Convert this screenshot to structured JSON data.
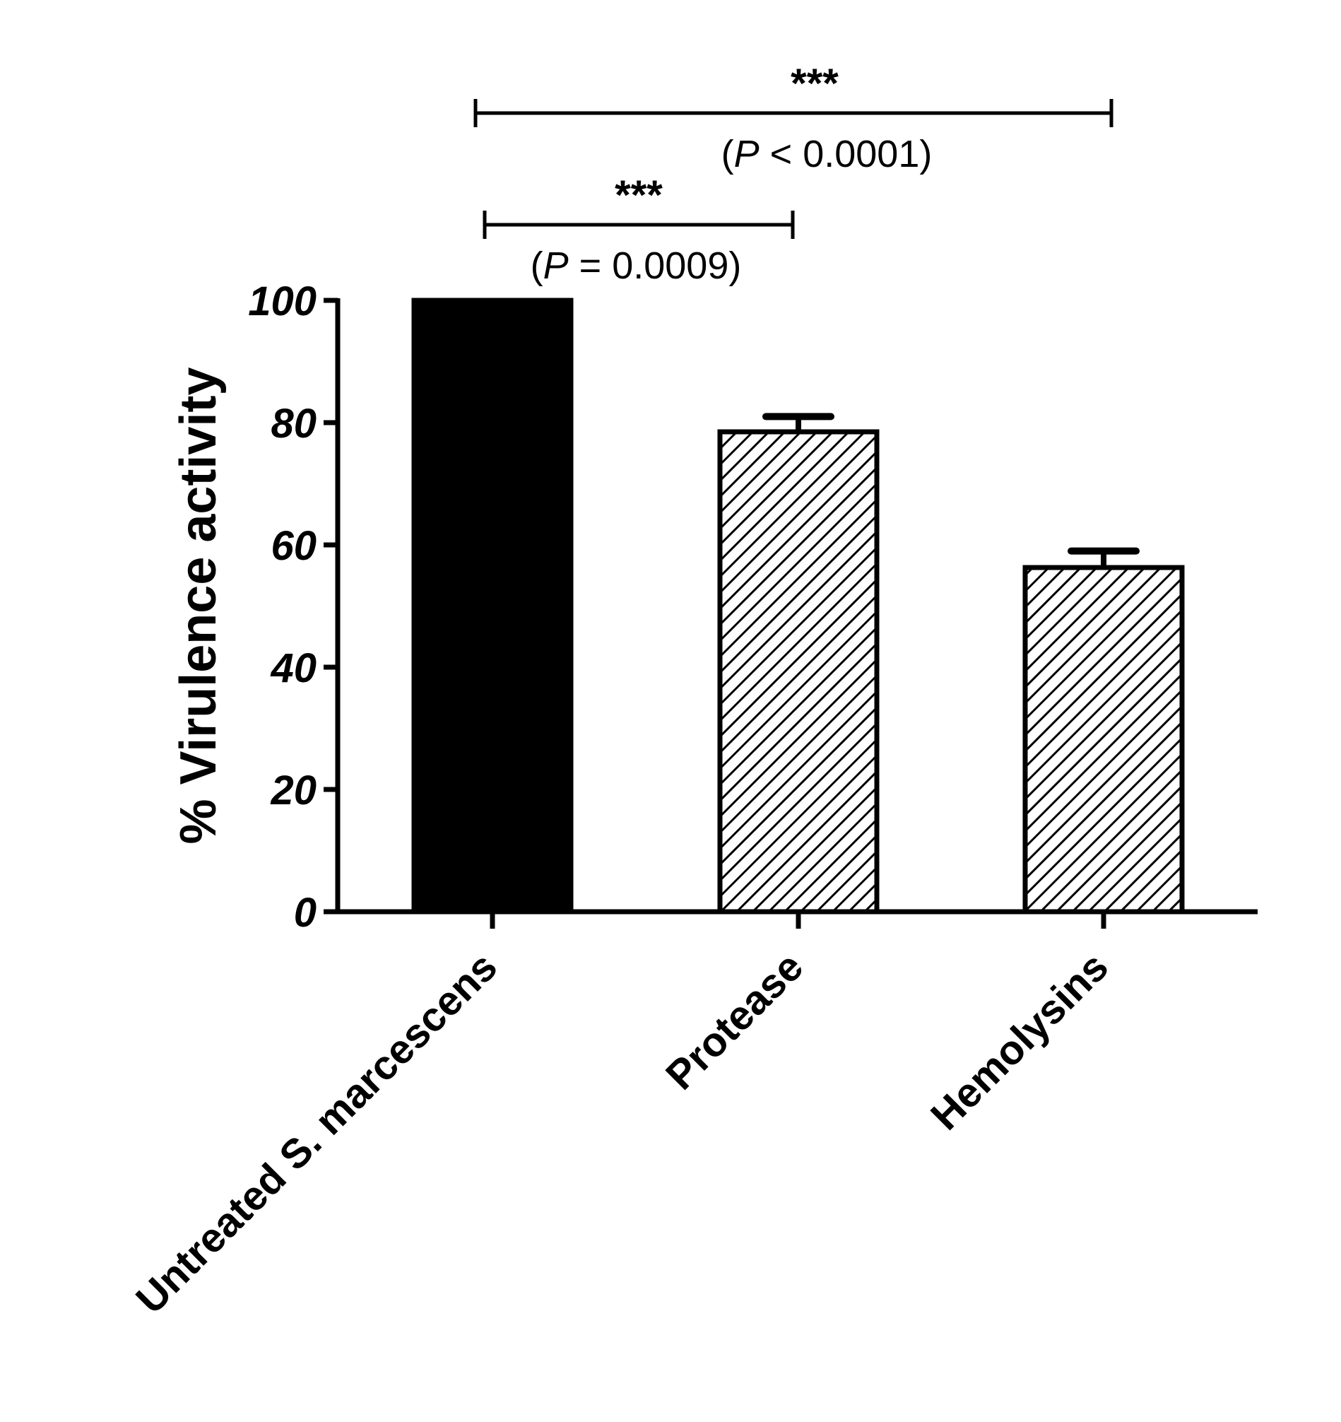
{
  "chart_data": {
    "type": "bar",
    "categories": [
      "Untreated S. marcescens",
      "Protease",
      "Hemolysins"
    ],
    "values": [
      100,
      78.5,
      56.3
    ],
    "error": [
      0,
      2.5,
      2.7
    ],
    "ylabel": "% Virulence activity",
    "xlabel": "",
    "ylim": [
      0,
      100
    ],
    "yticks": [
      0,
      20,
      40,
      60,
      80,
      100
    ],
    "fills": [
      "solid",
      "hatched",
      "hatched"
    ],
    "bar_color": "#000000",
    "significance": [
      {
        "from": 0,
        "to": 2,
        "stars": "***",
        "p_prefix": "(",
        "p_symbol": "P",
        "p_text": " < 0.0001)"
      },
      {
        "from": 0,
        "to": 1,
        "stars": "***",
        "p_prefix": "(",
        "p_symbol": "P",
        "p_text": " =  0.0009)"
      }
    ]
  }
}
